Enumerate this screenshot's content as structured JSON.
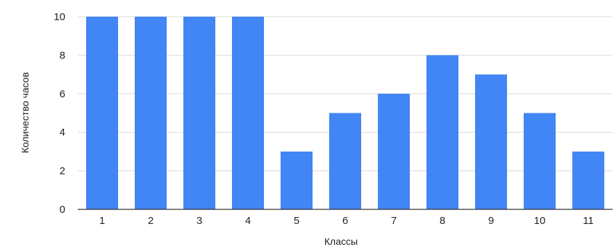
{
  "chart_data": {
    "type": "bar",
    "categories": [
      "1",
      "2",
      "3",
      "4",
      "5",
      "6",
      "7",
      "8",
      "9",
      "10",
      "11"
    ],
    "values": [
      10,
      10,
      10,
      10,
      3,
      5,
      6,
      8,
      7,
      5,
      3
    ],
    "xlabel": "Классы",
    "ylabel": "Количество часов",
    "ylim": [
      0,
      10
    ],
    "yticks": [
      0,
      2,
      4,
      6,
      8,
      10
    ],
    "grid": true,
    "bar_color": "#4285f4",
    "grid_color": "#d9d9d9",
    "axis_color": "#333333"
  }
}
